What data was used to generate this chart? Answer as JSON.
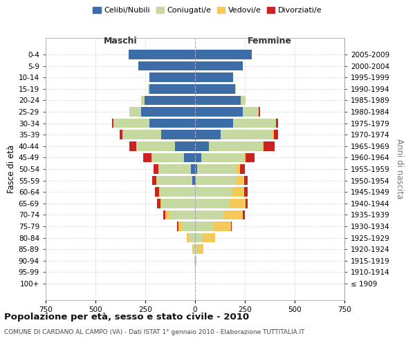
{
  "age_groups": [
    "0-4",
    "5-9",
    "10-14",
    "15-19",
    "20-24",
    "25-29",
    "30-34",
    "35-39",
    "40-44",
    "45-49",
    "50-54",
    "55-59",
    "60-64",
    "65-69",
    "70-74",
    "75-79",
    "80-84",
    "85-89",
    "90-94",
    "95-99",
    "100+"
  ],
  "birth_years": [
    "2005-2009",
    "2000-2004",
    "1995-1999",
    "1990-1994",
    "1985-1989",
    "1980-1984",
    "1975-1979",
    "1970-1974",
    "1965-1969",
    "1960-1964",
    "1955-1959",
    "1950-1954",
    "1945-1949",
    "1940-1944",
    "1935-1939",
    "1930-1934",
    "1925-1929",
    "1920-1924",
    "1915-1919",
    "1910-1914",
    "≤ 1909"
  ],
  "males": {
    "celibe": [
      335,
      285,
      230,
      230,
      255,
      270,
      230,
      170,
      100,
      55,
      20,
      15,
      0,
      0,
      0,
      0,
      0,
      0,
      0,
      0,
      0
    ],
    "coniugato": [
      0,
      0,
      0,
      5,
      15,
      60,
      180,
      195,
      195,
      160,
      160,
      175,
      175,
      165,
      130,
      65,
      30,
      8,
      2,
      1,
      0
    ],
    "vedovo": [
      0,
      0,
      0,
      0,
      0,
      0,
      0,
      0,
      0,
      5,
      5,
      5,
      5,
      10,
      20,
      20,
      10,
      5,
      0,
      0,
      0
    ],
    "divorziato": [
      0,
      0,
      0,
      0,
      0,
      0,
      5,
      15,
      35,
      40,
      25,
      20,
      20,
      15,
      10,
      5,
      0,
      0,
      0,
      0,
      0
    ]
  },
  "females": {
    "nubile": [
      285,
      240,
      190,
      200,
      230,
      240,
      190,
      130,
      70,
      30,
      10,
      5,
      0,
      0,
      0,
      0,
      0,
      0,
      0,
      0,
      0
    ],
    "coniugata": [
      0,
      0,
      0,
      5,
      25,
      80,
      215,
      260,
      270,
      215,
      195,
      200,
      185,
      175,
      145,
      90,
      40,
      10,
      3,
      0,
      0
    ],
    "vedova": [
      0,
      0,
      0,
      0,
      0,
      0,
      0,
      5,
      5,
      10,
      20,
      40,
      60,
      80,
      95,
      90,
      60,
      30,
      5,
      2,
      0
    ],
    "divorziata": [
      0,
      0,
      0,
      0,
      0,
      5,
      10,
      20,
      55,
      45,
      25,
      20,
      20,
      10,
      10,
      5,
      0,
      0,
      0,
      0,
      0
    ]
  },
  "color_celibe": "#3c6da6",
  "color_coniugato": "#c5d9a0",
  "color_vedovo": "#f5c85a",
  "color_divorziato": "#cc2222",
  "xlim": 750,
  "title": "Popolazione per età, sesso e stato civile - 2010",
  "subtitle": "COMUNE DI CARDANO AL CAMPO (VA) - Dati ISTAT 1° gennaio 2010 - Elaborazione TUTTITALIA.IT",
  "ylabel_left": "Fasce di età",
  "ylabel_right": "Anni di nascita",
  "xlabel_left": "Maschi",
  "xlabel_right": "Femmine",
  "bg_color": "#ffffff",
  "grid_color": "#cccccc"
}
